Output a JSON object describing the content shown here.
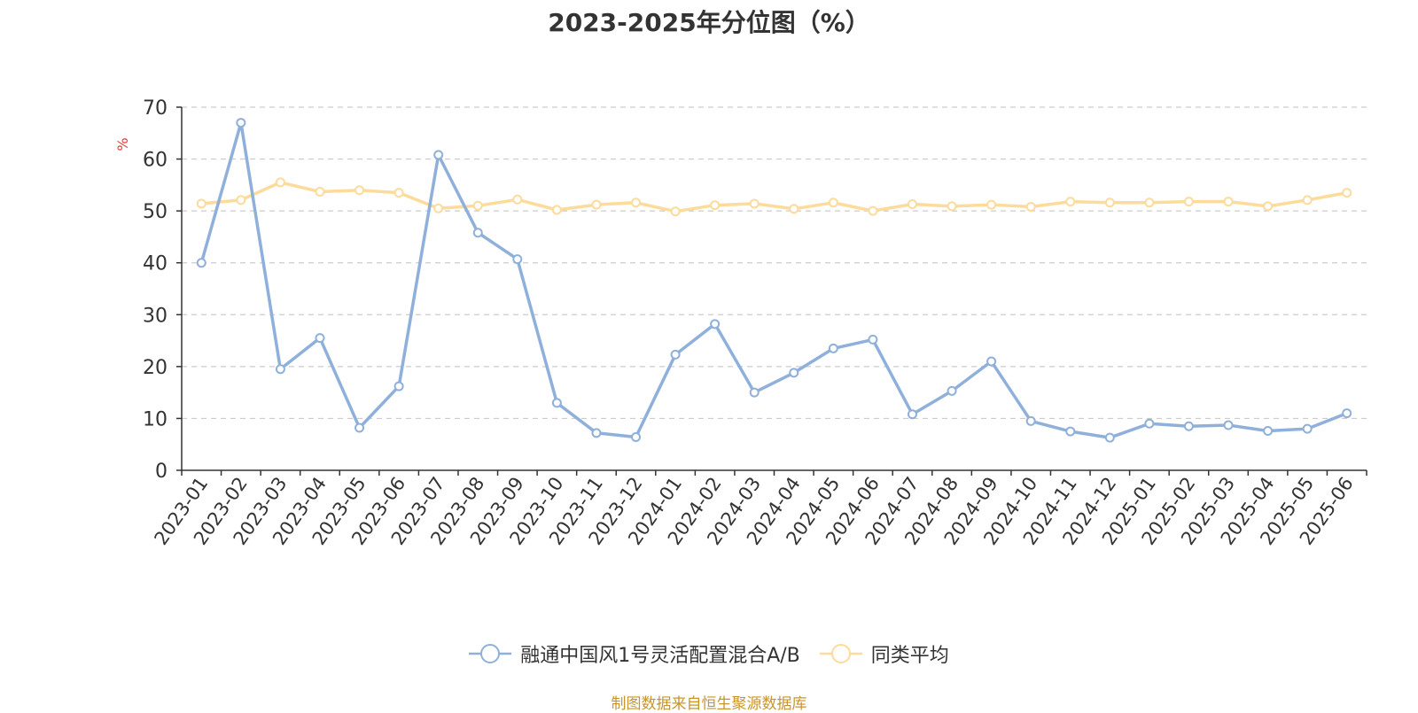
{
  "chart_data": {
    "type": "line",
    "title": "2023-2025年分位图（%）",
    "ylabel": "%",
    "xlabel": "",
    "ylim": [
      0,
      70
    ],
    "yticks": [
      0,
      10,
      20,
      30,
      40,
      50,
      60,
      70
    ],
    "grid": true,
    "legend_position": "bottom",
    "categories": [
      "2023-01",
      "2023-02",
      "2023-03",
      "2023-04",
      "2023-05",
      "2023-06",
      "2023-07",
      "2023-08",
      "2023-09",
      "2023-10",
      "2023-11",
      "2023-12",
      "2024-01",
      "2024-02",
      "2024-03",
      "2024-04",
      "2024-05",
      "2024-06",
      "2024-07",
      "2024-08",
      "2024-09",
      "2024-10",
      "2024-11",
      "2024-12",
      "2025-01",
      "2025-02",
      "2025-03",
      "2025-04",
      "2025-05",
      "2025-06"
    ],
    "series": [
      {
        "name": "融通中国风1号灵活配置混合A/B",
        "color": "#8eb0db",
        "values": [
          40.0,
          67.0,
          19.5,
          25.5,
          8.2,
          16.2,
          60.8,
          45.8,
          40.7,
          13.0,
          7.2,
          6.4,
          22.3,
          28.2,
          15.0,
          18.8,
          23.5,
          25.2,
          10.8,
          15.3,
          21.0,
          9.5,
          7.5,
          6.3,
          9.0,
          8.5,
          8.7,
          7.6,
          8.0,
          11.0
        ]
      },
      {
        "name": "同类平均",
        "color": "#fcdb9b",
        "values": [
          51.4,
          52.1,
          55.5,
          53.7,
          54.0,
          53.5,
          50.5,
          51.0,
          52.2,
          50.2,
          51.2,
          51.6,
          49.9,
          51.1,
          51.4,
          50.4,
          51.6,
          50.0,
          51.3,
          50.9,
          51.2,
          50.8,
          51.8,
          51.6,
          51.6,
          51.8,
          51.8,
          50.9,
          52.1,
          53.5
        ]
      }
    ]
  },
  "source_note": "制图数据来自恒生聚源数据库"
}
